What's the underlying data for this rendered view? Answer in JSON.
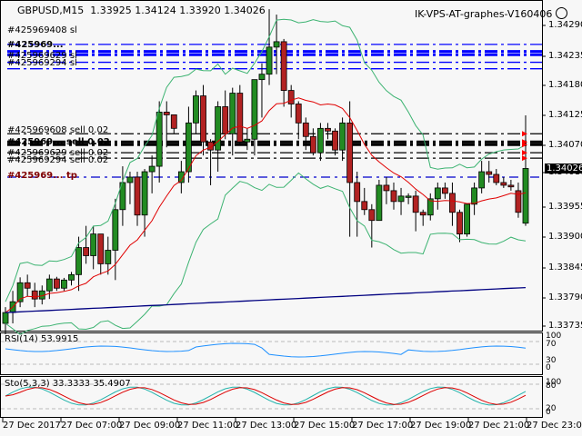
{
  "header": {
    "symbol": "GBPUSD,M15",
    "open": "1.33925",
    "high": "1.34124",
    "low": "1.33920",
    "close": "1.34026",
    "expert_name": "IK-VPS-AT-graphes-V160406",
    "expert_status_icon": "smiley-icon"
  },
  "colors": {
    "background": "#f7f7f7",
    "bull_candle": "#228b22",
    "bear_candle": "#b22222",
    "bollinger": "#3cb371",
    "ma_fast": "#e00000",
    "ma_slow": "#000080",
    "rsi_line": "#1e90ff",
    "stoch_main": "#20b2aa",
    "stoch_signal": "#dd0000",
    "order_lines_top": "#0000ff",
    "order_lines_mid": "#000000",
    "tp_line": "#0000cc",
    "arrow_marks": "#ff0000"
  },
  "order_labels": {
    "top_group": [
      "#425969408 sl",
      "#425969...",
      "#425969629 sl",
      "#425969294 sl"
    ],
    "mid_group": [
      "#425969608 sell 0.02",
      "#425969... sell 0.02",
      "#425969629 sell 0.02",
      "#425969294 sell 0.02"
    ],
    "tp_label": "#425969... tp"
  },
  "price_axis": {
    "ticks": [
      "1.34290",
      "1.34235",
      "1.34180",
      "1.34125",
      "1.34070",
      "1.34010",
      "1.33955",
      "1.33900",
      "1.33845",
      "1.33790",
      "1.33735"
    ],
    "current_price": "1.34026"
  },
  "rsi": {
    "label": "RSI(14) 53.9915",
    "levels": [
      "100",
      "70",
      "30",
      "0"
    ]
  },
  "stoch": {
    "label": "Sto(5,3,3) 33.3333 35.4907",
    "levels": [
      "100",
      "80",
      "20",
      "0"
    ]
  },
  "time_axis": {
    "ticks": [
      "27 Dec 2017",
      "27 Dec 07:00",
      "27 Dec 09:00",
      "27 Dec 11:00",
      "27 Dec 13:00",
      "27 Dec 15:00",
      "27 Dec 17:00",
      "27 Dec 19:00",
      "27 Dec 21:00",
      "27 Dec 23:00"
    ]
  },
  "chart_data": {
    "type": "candlestick",
    "title": "GBPUSD,M15",
    "ylim": [
      1.3371,
      1.3433
    ],
    "candles": [
      [
        1.3374,
        1.3377,
        1.3372,
        1.3376
      ],
      [
        1.3376,
        1.338,
        1.3374,
        1.3378
      ],
      [
        1.3378,
        1.33825,
        1.3377,
        1.33815
      ],
      [
        1.33815,
        1.3383,
        1.3379,
        1.33805
      ],
      [
        1.338,
        1.33815,
        1.3377,
        1.33785
      ],
      [
        1.33785,
        1.3381,
        1.33775,
        1.338
      ],
      [
        1.338,
        1.3383,
        1.33785,
        1.33822
      ],
      [
        1.33822,
        1.33826,
        1.338,
        1.33805
      ],
      [
        1.33805,
        1.33824,
        1.338,
        1.3382
      ],
      [
        1.3382,
        1.33835,
        1.3381,
        1.3383
      ],
      [
        1.3383,
        1.339,
        1.338,
        1.3388
      ],
      [
        1.3388,
        1.3392,
        1.3385,
        1.33865
      ],
      [
        1.33865,
        1.3392,
        1.3384,
        1.33905
      ],
      [
        1.33905,
        1.33905,
        1.3383,
        1.3385
      ],
      [
        1.3385,
        1.339,
        1.3383,
        1.33875
      ],
      [
        1.33875,
        1.3397,
        1.3382,
        1.3395
      ],
      [
        1.3395,
        1.3403,
        1.3392,
        1.34
      ],
      [
        1.34,
        1.3402,
        1.3396,
        1.3401
      ],
      [
        1.3401,
        1.3402,
        1.3392,
        1.3394
      ],
      [
        1.3394,
        1.34025,
        1.339,
        1.3402
      ],
      [
        1.3402,
        1.3405,
        1.3398,
        1.3403
      ],
      [
        1.3403,
        1.3415,
        1.34,
        1.3413
      ],
      [
        1.3413,
        1.3415,
        1.34065,
        1.34125
      ],
      [
        1.34125,
        1.341,
        1.3409,
        1.341
      ],
      [
        1.34,
        1.3404,
        1.3398,
        1.3402
      ],
      [
        1.3402,
        1.3414,
        1.34,
        1.3411
      ],
      [
        1.3411,
        1.3417,
        1.3409,
        1.3416
      ],
      [
        1.3416,
        1.3418,
        1.3405,
        1.34075
      ],
      [
        1.34075,
        1.3408,
        1.33995,
        1.3406
      ],
      [
        1.3406,
        1.3415,
        1.3402,
        1.3414
      ],
      [
        1.3414,
        1.3417,
        1.3408,
        1.3409
      ],
      [
        1.3409,
        1.34175,
        1.3405,
        1.34165
      ],
      [
        1.34165,
        1.3418,
        1.3407,
        1.34075
      ],
      [
        1.34075,
        1.341,
        1.3406,
        1.3408
      ],
      [
        1.3408,
        1.3419,
        1.3405,
        1.3419
      ],
      [
        1.3419,
        1.3422,
        1.3412,
        1.342
      ],
      [
        1.342,
        1.3432,
        1.3418,
        1.3425
      ],
      [
        1.3425,
        1.3431,
        1.342,
        1.3426
      ],
      [
        1.3426,
        1.34265,
        1.3414,
        1.3417
      ],
      [
        1.3417,
        1.3418,
        1.3412,
        1.34145
      ],
      [
        1.34145,
        1.3415,
        1.3408,
        1.3411
      ],
      [
        1.3411,
        1.3412,
        1.3406,
        1.34085
      ],
      [
        1.34085,
        1.341,
        1.3405,
        1.34055
      ],
      [
        1.34055,
        1.3411,
        1.3404,
        1.341
      ],
      [
        1.341,
        1.3411,
        1.3408,
        1.34095
      ],
      [
        1.34095,
        1.341,
        1.3405,
        1.3406
      ],
      [
        1.3406,
        1.3412,
        1.3404,
        1.3411
      ],
      [
        1.3411,
        1.3415,
        1.339,
        1.34
      ],
      [
        1.34,
        1.3402,
        1.339,
        1.33965
      ],
      [
        1.33965,
        1.3399,
        1.3394,
        1.3395
      ],
      [
        1.3395,
        1.3396,
        1.3388,
        1.3393
      ],
      [
        1.3393,
        1.34005,
        1.3393,
        1.33995
      ],
      [
        1.33995,
        1.3401,
        1.3396,
        1.33985
      ],
      [
        1.33985,
        1.34,
        1.3395,
        1.33965
      ],
      [
        1.33965,
        1.3399,
        1.3394,
        1.33975
      ],
      [
        1.33975,
        1.3398,
        1.3396,
        1.33975
      ],
      [
        1.33975,
        1.33985,
        1.3391,
        1.33945
      ],
      [
        1.33945,
        1.3395,
        1.3392,
        1.3394
      ],
      [
        1.3394,
        1.3398,
        1.3393,
        1.3397
      ],
      [
        1.3397,
        1.34,
        1.3395,
        1.3399
      ],
      [
        1.3399,
        1.34,
        1.3397,
        1.3398
      ],
      [
        1.3398,
        1.34,
        1.3392,
        1.33945
      ],
      [
        1.33945,
        1.3395,
        1.3389,
        1.33905
      ],
      [
        1.33905,
        1.3396,
        1.339,
        1.3396
      ],
      [
        1.3396,
        1.34,
        1.3394,
        1.3399
      ],
      [
        1.3399,
        1.3404,
        1.3398,
        1.3402
      ],
      [
        1.3402,
        1.3404,
        1.34,
        1.34015
      ],
      [
        1.34015,
        1.34025,
        1.33995,
        1.34
      ],
      [
        1.34,
        1.3401,
        1.3399,
        1.33995
      ],
      [
        1.33995,
        1.34005,
        1.33985,
        1.33992
      ],
      [
        1.33985,
        1.34,
        1.33935,
        1.33945
      ],
      [
        1.33925,
        1.34124,
        1.3392,
        1.34026
      ]
    ],
    "order_levels_top": [
      1.34255,
      1.34242,
      1.34236,
      1.34222,
      1.3421
    ],
    "order_levels_mid": [
      1.3409,
      1.34075,
      1.3407,
      1.34055,
      1.34045
    ],
    "tp_level": 1.3401
  }
}
